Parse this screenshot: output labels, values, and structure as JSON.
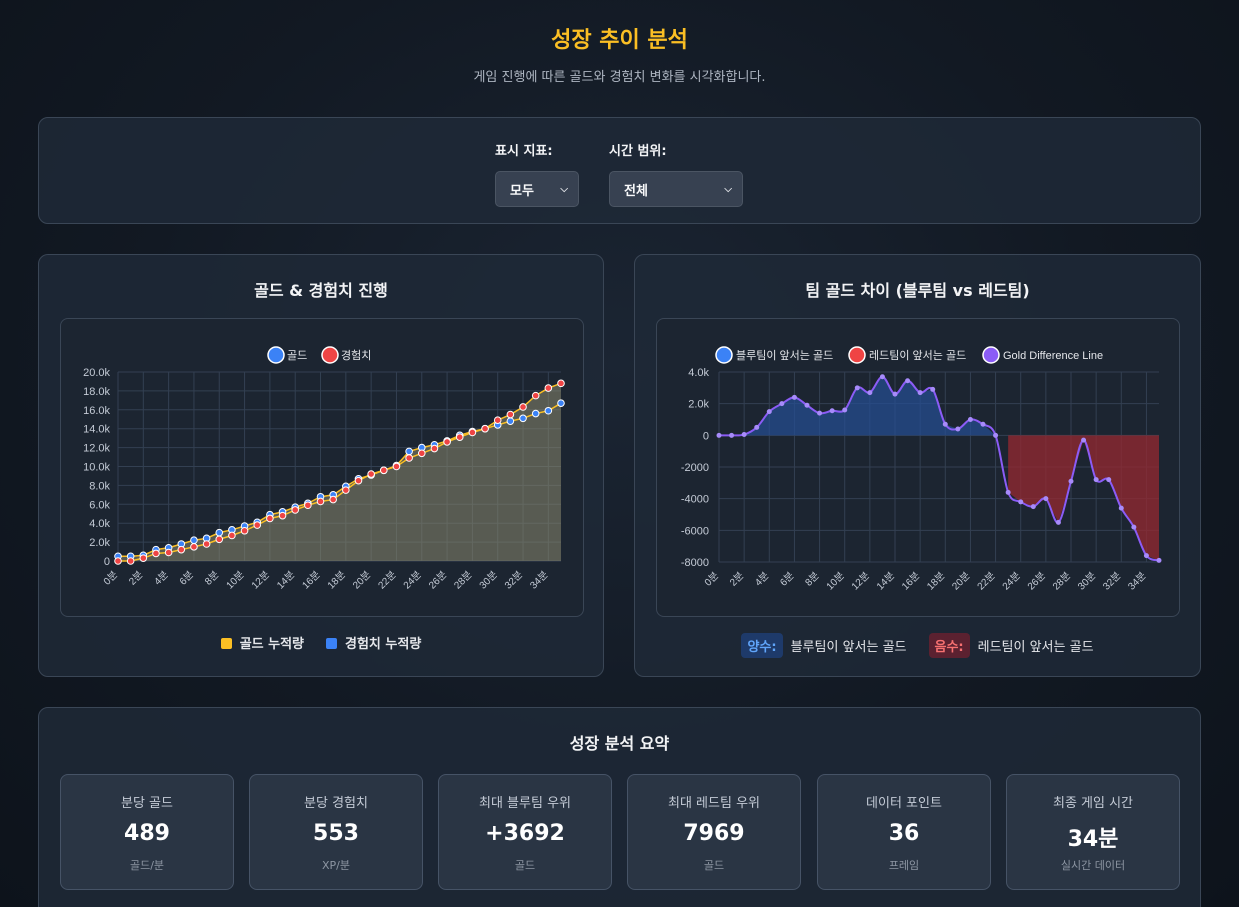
{
  "header": {
    "title": "성장 추이 분석",
    "subtitle": "게임 진행에 따른 골드와 경험치 변화를 시각화합니다."
  },
  "controls": {
    "metric_label": "표시 지표:",
    "metric_value": "모두",
    "range_label": "시간 범위:",
    "range_value": "전체"
  },
  "left_panel": {
    "title": "골드 & 경험치 진행",
    "legend_gold_cumulative": "골드 누적량",
    "legend_xp_cumulative": "경험치 누적량"
  },
  "right_panel": {
    "title": "팀 골드 차이 (블루팀 vs 레드팀)",
    "positive_tag": "양수:",
    "positive_desc": "블루팀이 앞서는 골드",
    "negative_tag": "음수:",
    "negative_desc": "레드팀이 앞서는 골드"
  },
  "summary": {
    "title": "성장 분석 요약",
    "cards": [
      {
        "label": "분당 골드",
        "value": "489",
        "unit": "골드/분"
      },
      {
        "label": "분당 경험치",
        "value": "553",
        "unit": "XP/분"
      },
      {
        "label": "최대 블루팀 우위",
        "value": "+3692",
        "unit": "골드"
      },
      {
        "label": "최대 레드팀 우위",
        "value": "7969",
        "unit": "골드"
      },
      {
        "label": "데이터 포인트",
        "value": "36",
        "unit": "프레임"
      },
      {
        "label": "최종 게임 시간",
        "value": "34분",
        "unit": "실시간 데이터"
      }
    ]
  },
  "colors": {
    "gold": "#fbbf24",
    "xp": "#3b82f6",
    "red": "#ef4444",
    "purple": "#8b5cf6"
  },
  "chart_data": [
    {
      "type": "line",
      "x": [
        0,
        1,
        2,
        3,
        4,
        5,
        6,
        7,
        8,
        9,
        10,
        11,
        12,
        13,
        14,
        15,
        16,
        17,
        18,
        19,
        20,
        21,
        22,
        23,
        24,
        25,
        26,
        27,
        28,
        29,
        30,
        31,
        32,
        33,
        34,
        35
      ],
      "x_tick_labels": [
        "0분",
        "2분",
        "4분",
        "6분",
        "8분",
        "10분",
        "12분",
        "14분",
        "16분",
        "18분",
        "20분",
        "22분",
        "24분",
        "26분",
        "28분",
        "30분",
        "32분",
        "34분"
      ],
      "series": [
        {
          "name": "골드",
          "color": "#3b82f6",
          "values": [
            500,
            500,
            600,
            1200,
            1400,
            1800,
            2200,
            2400,
            3000,
            3300,
            3700,
            4100,
            4900,
            5200,
            5700,
            6100,
            6800,
            7000,
            7900,
            8700,
            9100,
            9600,
            10100,
            11600,
            12000,
            12300,
            12700,
            13300,
            13700,
            14000,
            14400,
            14800,
            15100,
            15600,
            15900,
            16700
          ]
        },
        {
          "name": "경험치",
          "color": "#ef4444",
          "values": [
            0,
            0,
            300,
            800,
            900,
            1200,
            1500,
            1800,
            2300,
            2700,
            3200,
            3800,
            4500,
            4800,
            5400,
            5900,
            6300,
            6500,
            7500,
            8500,
            9200,
            9600,
            10000,
            10900,
            11400,
            11900,
            12600,
            13100,
            13600,
            14000,
            14900,
            15500,
            16300,
            17500,
            18300,
            18800
          ]
        }
      ],
      "ylim": [
        0,
        20000
      ],
      "y_ticks": [
        "0",
        "2.0k",
        "4.0k",
        "6.0k",
        "8.0k",
        "10.0k",
        "12.0k",
        "14.0k",
        "16.0k",
        "18.0k",
        "20.0k"
      ]
    },
    {
      "type": "area",
      "x": [
        0,
        1,
        2,
        3,
        4,
        5,
        6,
        7,
        8,
        9,
        10,
        11,
        12,
        13,
        14,
        15,
        16,
        17,
        18,
        19,
        20,
        21,
        22,
        23,
        24,
        25,
        26,
        27,
        28,
        29,
        30,
        31,
        32,
        33,
        34,
        35
      ],
      "x_tick_labels": [
        "0분",
        "2분",
        "4분",
        "6분",
        "8분",
        "10분",
        "12분",
        "14분",
        "16분",
        "18분",
        "20분",
        "22분",
        "24분",
        "26분",
        "28분",
        "30분",
        "32분",
        "34분"
      ],
      "legend": [
        "블루팀이 앞서는 골드",
        "레드팀이 앞서는 골드",
        "Gold Difference Line"
      ],
      "series": [
        {
          "name": "Gold Difference Line",
          "color": "#8b5cf6",
          "values": [
            0,
            0,
            50,
            500,
            1500,
            2000,
            2400,
            1900,
            1400,
            1550,
            1600,
            3000,
            2700,
            3700,
            2600,
            3450,
            2700,
            2900,
            700,
            400,
            1000,
            700,
            0,
            -3600,
            -4200,
            -4500,
            -4000,
            -5500,
            -2900,
            -300,
            -2800,
            -2800,
            -4600,
            -5800,
            -7600,
            -7900
          ]
        }
      ],
      "ylim": [
        -8000,
        4000
      ],
      "y_ticks": [
        "-8000",
        "-6000",
        "-4000",
        "-2000",
        "0",
        "2.0k",
        "4.0k"
      ]
    }
  ]
}
